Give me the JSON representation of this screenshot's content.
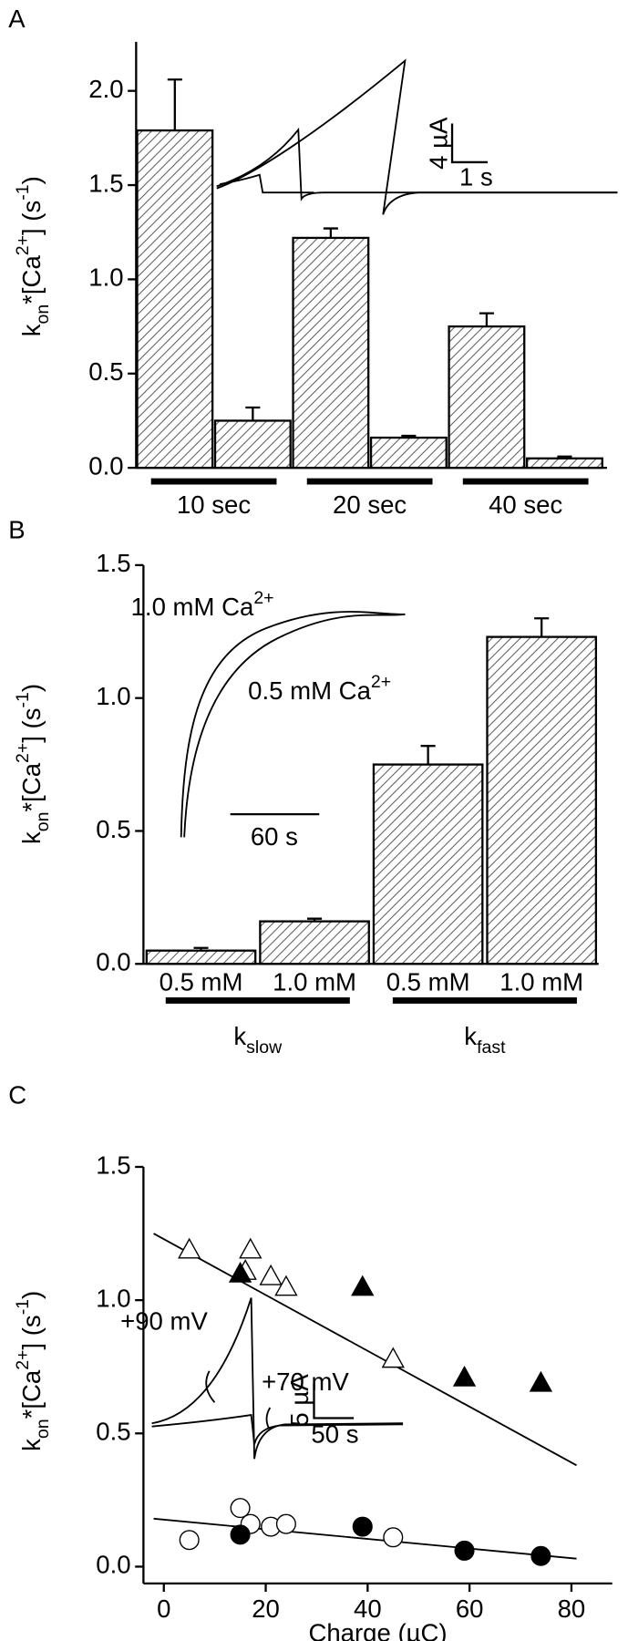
{
  "chart_data": [
    {
      "type": "bar",
      "panel_label": "A",
      "y_label": [
        {
          "text": "k"
        },
        {
          "text": "on",
          "shift": "sub"
        },
        {
          "text": "*[Ca"
        },
        {
          "text": "2+",
          "shift": "super"
        },
        {
          "text": "] (s"
        },
        {
          "text": "-1",
          "shift": "super"
        },
        {
          "text": ")"
        }
      ],
      "values": [
        1.79,
        0.25,
        1.22,
        0.16,
        0.75,
        0.05
      ],
      "errors": [
        0.27,
        0.07,
        0.05,
        0.01,
        0.07,
        0.01
      ],
      "group_labels": [
        "10 sec",
        "20 sec",
        "40 sec"
      ],
      "ylim": [
        0,
        2.26
      ],
      "yticks": [
        {
          "value": 0,
          "label": "0.0"
        },
        {
          "value": 0.5,
          "label": "0.5"
        },
        {
          "value": 1,
          "label": "1.0"
        },
        {
          "value": 1.5,
          "label": "1.5"
        },
        {
          "value": 2,
          "label": "2.0"
        }
      ],
      "hatch": true,
      "inset_labels": [
        "4 µA",
        "1 s"
      ]
    },
    {
      "type": "bar",
      "panel_label": "B",
      "y_label": [
        {
          "text": "k"
        },
        {
          "text": "on",
          "shift": "sub"
        },
        {
          "text": "*[Ca"
        },
        {
          "text": "2+",
          "shift": "super"
        },
        {
          "text": "] (s"
        },
        {
          "text": "-1",
          "shift": "super"
        },
        {
          "text": ")"
        }
      ],
      "categories": [
        "0.5 mM",
        "1.0 mM",
        "0.5 mM",
        "1.0 mM"
      ],
      "values": [
        0.05,
        0.16,
        0.75,
        1.23
      ],
      "errors": [
        0.01,
        0.01,
        0.07,
        0.07
      ],
      "group_labels": [
        [
          {
            "text": "k"
          },
          {
            "text": "slow",
            "shift": "sub"
          }
        ],
        [
          {
            "text": "k"
          },
          {
            "text": "fast",
            "shift": "sub"
          }
        ]
      ],
      "ylim": [
        0,
        1.5
      ],
      "yticks": [
        {
          "value": 0,
          "label": "0.0"
        },
        {
          "value": 0.5,
          "label": "0.5"
        },
        {
          "value": 1,
          "label": "1.0"
        },
        {
          "value": 1.5,
          "label": "1.5"
        }
      ],
      "hatch": true,
      "inset_labels": [
        [
          {
            "text": "1.0 mM Ca"
          },
          {
            "text": "2+",
            "shift": "super"
          }
        ],
        [
          {
            "text": "0.5 mM Ca"
          },
          {
            "text": "2+",
            "shift": "super"
          }
        ],
        "60 s"
      ]
    },
    {
      "type": "scatter",
      "panel_label": "C",
      "y_label": [
        {
          "text": "k"
        },
        {
          "text": "on",
          "shift": "sub"
        },
        {
          "text": "*[Ca"
        },
        {
          "text": "2+",
          "shift": "super"
        },
        {
          "text": "] (s"
        },
        {
          "text": "-1",
          "shift": "super"
        },
        {
          "text": ")"
        }
      ],
      "x_label": "Charge (µC)",
      "series": [
        {
          "marker": "triangle",
          "filled": false,
          "x": [
            5,
            16,
            17,
            21,
            24,
            45
          ],
          "values": [
            1.19,
            1.11,
            1.19,
            1.09,
            1.05,
            0.78
          ]
        },
        {
          "marker": "triangle",
          "filled": true,
          "x": [
            15,
            39,
            59,
            74
          ],
          "values": [
            1.1,
            1.05,
            0.71,
            0.69
          ]
        },
        {
          "marker": "circle",
          "filled": false,
          "x": [
            5,
            15,
            17,
            21,
            24,
            45
          ],
          "values": [
            0.1,
            0.22,
            0.16,
            0.15,
            0.16,
            0.11
          ]
        },
        {
          "marker": "circle",
          "filled": true,
          "x": [
            15,
            39,
            59,
            74
          ],
          "values": [
            0.12,
            0.15,
            0.06,
            0.04
          ]
        }
      ],
      "fits": [
        {
          "x": [
            -2,
            81
          ],
          "values": [
            1.25,
            0.38
          ]
        },
        {
          "x": [
            -2,
            81
          ],
          "values": [
            0.18,
            0.03
          ]
        }
      ],
      "xlim": [
        -4,
        88
      ],
      "xticks": [
        0,
        20,
        40,
        60,
        80
      ],
      "ylim": [
        -0.063,
        1.5
      ],
      "yticks": [
        {
          "value": 0,
          "label": "0.0"
        },
        {
          "value": 0.5,
          "label": "0.5"
        },
        {
          "value": 1,
          "label": "1.0"
        },
        {
          "value": 1.5,
          "label": "1.5"
        }
      ],
      "inset_labels": [
        "+90 mV",
        "+70 mV",
        "5 µA",
        "50 s"
      ]
    }
  ]
}
